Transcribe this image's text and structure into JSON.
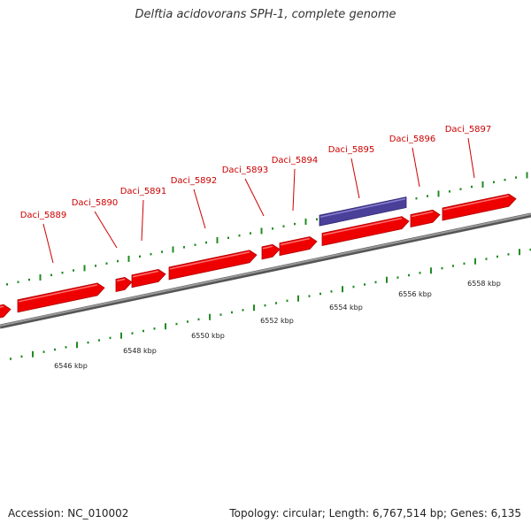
{
  "title": "Delftia acidovorans SPH-1, complete genome",
  "footer": {
    "accession": "Accession: NC_010002",
    "summary": "Topology: circular; Length: 6,767,514 bp; Genes: 6,135"
  },
  "colors": {
    "gene_forward": "#ee0000",
    "gene_highlight": "#4a3f99",
    "label": "#cc0000",
    "ticks": "#228b22",
    "backbone": "#808080"
  },
  "genes": [
    {
      "id": "Daci_5889"
    },
    {
      "id": "Daci_5890"
    },
    {
      "id": "Daci_5891"
    },
    {
      "id": "Daci_5892"
    },
    {
      "id": "Daci_5893"
    },
    {
      "id": "Daci_5894"
    },
    {
      "id": "Daci_5895"
    },
    {
      "id": "Daci_5896"
    },
    {
      "id": "Daci_5897"
    }
  ],
  "kbp_labels": [
    "6546 kbp",
    "6548 kbp",
    "6550 kbp",
    "6552 kbp",
    "6554 kbp",
    "6556 kbp",
    "6558 kbp"
  ]
}
